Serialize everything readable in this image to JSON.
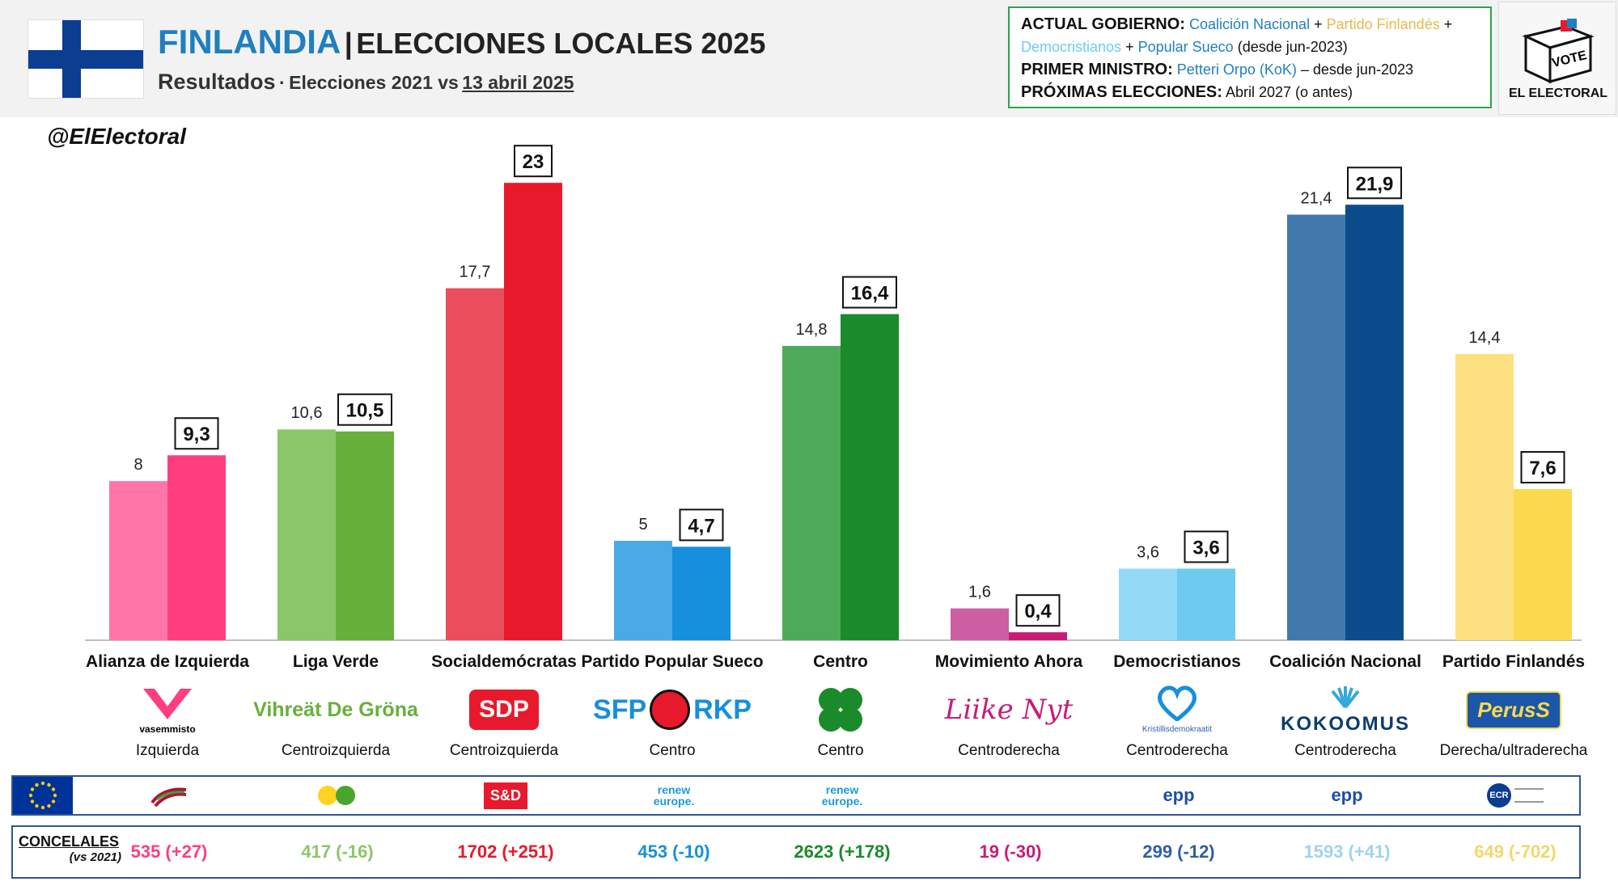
{
  "header": {
    "country": "FINLANDIA",
    "separator": "|",
    "title": "ELECCIONES LOCALES 2025",
    "subtitle_a": "Resultados",
    "subtitle_dot": "·",
    "subtitle_b": "Elecciones 2021 vs",
    "subtitle_date": "13 abril 2025"
  },
  "info": {
    "gov_label": "ACTUAL GOBIERNO:",
    "gov_p1": "Coalición Nacional",
    "plus": "+",
    "gov_p2": "Partido Finlandés",
    "gov_p3": "Democristianos",
    "gov_p4": "Popular Sueco",
    "gov_since": "(desde jun-2023)",
    "pm_label": "PRIMER MINISTRO:",
    "pm_name": "Petteri Orpo (KoK)",
    "pm_since": "– desde jun-2023",
    "next_label": "PRÓXIMAS ELECCIONES:",
    "next_value": "Abril 2027 (o antes)"
  },
  "brand": {
    "logo_text": "EL ELECTORAL",
    "vote_text": "VOTE",
    "handle": "@ElElectoral"
  },
  "colors": {
    "accent_blue": "#1f7fbf",
    "box_green": "#2fa24f",
    "row_border": "#2f5597"
  },
  "chart_data": {
    "type": "bar",
    "categories": [
      "Alianza de Izquierda",
      "Liga Verde",
      "Socialdemócratas",
      "Partido Popular Sueco",
      "Centro",
      "Movimiento Ahora",
      "Democristianos",
      "Coalición Nacional",
      "Partido Finlandés"
    ],
    "series": [
      {
        "values": [
          8,
          10.6,
          17.7,
          5,
          14.8,
          1.6,
          3.6,
          21.4,
          14.4
        ],
        "labels": [
          "8",
          "10,6",
          "17,7",
          "5",
          "14,8",
          "1,6",
          "3,6",
          "21,4",
          "14,4"
        ]
      },
      {
        "values": [
          9.3,
          10.5,
          23,
          4.7,
          16.4,
          0.4,
          3.6,
          21.9,
          7.6
        ],
        "labels": [
          "9,3",
          "10,5",
          "23",
          "4,7",
          "16,4",
          "0,4",
          "3,6",
          "21,9",
          "7,6"
        ]
      }
    ],
    "colors_2021": [
      "#ff75a8",
      "#8cc66a",
      "#ec4d5c",
      "#4aaae6",
      "#4eaa5a",
      "#cc5fa3",
      "#92d9f5",
      "#4279ad",
      "#fde07f"
    ],
    "colors_2025": [
      "#ff3d7f",
      "#67b03b",
      "#e8192c",
      "#168fdd",
      "#1b8a2a",
      "#c71c76",
      "#6ccbef",
      "#0d4c8c",
      "#fbd94f"
    ],
    "ylim": [
      0,
      25
    ],
    "grid": false,
    "legend": "none"
  },
  "parties": [
    {
      "name": "Alianza de Izquierda",
      "ideology": "Izquierda",
      "logo_text": "vasemmisto",
      "seats": "535 (+27)",
      "seat_color": "#ff3d7f"
    },
    {
      "name": "Liga Verde",
      "ideology": "Centroizquierda",
      "logo_text": "Vihreät De Gröna",
      "seats": "417 (-16)",
      "seat_color": "#8cc66a"
    },
    {
      "name": "Socialdemócratas",
      "ideology": "Centroizquierda",
      "logo_text": "SDP",
      "seats": "1702 (+251)",
      "seat_color": "#e8192c"
    },
    {
      "name": "Partido Popular Sueco",
      "ideology": "Centro",
      "logo_text_a": "SFP",
      "logo_text_b": "RKP",
      "seats": "453 (-10)",
      "seat_color": "#168fdd"
    },
    {
      "name": "Centro",
      "ideology": "Centro",
      "seats": "2623 (+178)",
      "seat_color": "#1b8a2a"
    },
    {
      "name": "Movimiento Ahora",
      "ideology": "Centroderecha",
      "logo_text": "Liike Nyt",
      "seats": "19 (-30)",
      "seat_color": "#c71c76"
    },
    {
      "name": "Democristianos",
      "ideology": "Centroderecha",
      "logo_text": "Kristillisdemokraatit",
      "seats": "299 (-12)",
      "seat_color": "#2f5fa7"
    },
    {
      "name": "Coalición Nacional",
      "ideology": "Centroderecha",
      "logo_text": "KOKOOMUS",
      "seats": "1593 (+41)",
      "seat_color": "#9fd3f0"
    },
    {
      "name": "Partido Finlandés",
      "ideology": "Derecha/ultraderecha",
      "logo_text": "PerusS",
      "seats": "649 (-702)",
      "seat_color": "#f5d66b"
    }
  ],
  "eu_groups": [
    {
      "icon": "left-group-icon",
      "text": ""
    },
    {
      "icon": "greens-group-icon",
      "text": ""
    },
    {
      "icon": "sd-group-icon",
      "text": "S&D"
    },
    {
      "icon": "renew-group-icon",
      "text": "renew europe."
    },
    {
      "icon": "renew-group-icon",
      "text": "renew europe."
    },
    {
      "icon": "none",
      "text": ""
    },
    {
      "icon": "epp-group-icon",
      "text": "epp"
    },
    {
      "icon": "epp-group-icon",
      "text": "epp"
    },
    {
      "icon": "ecr-group-icon",
      "text": "ECR"
    }
  ],
  "council": {
    "label": "CONCELALES",
    "sublabel": "(vs 2021)"
  }
}
